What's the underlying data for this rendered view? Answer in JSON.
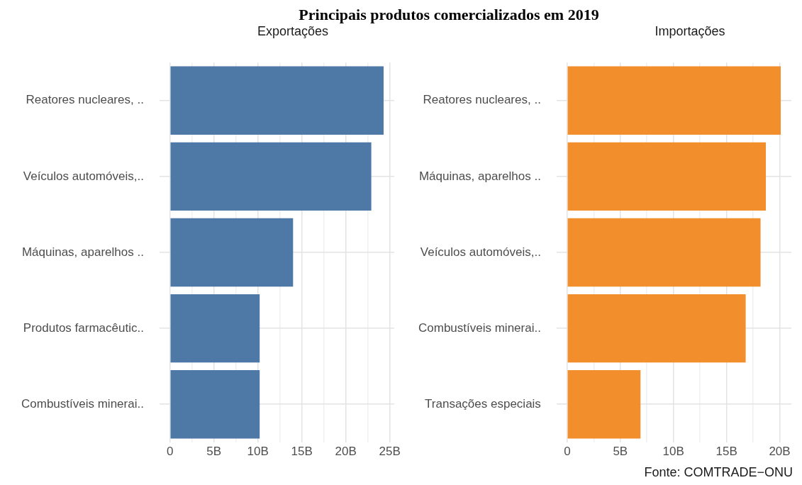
{
  "chart_data": [
    {
      "type": "bar",
      "orientation": "horizontal",
      "title": "Principais produtos comercializados em 2019",
      "subtitle": "Exportações",
      "categories": [
        "Reatores nucleares, ..",
        "Veículos automóveis,..",
        "Máquinas, aparelhos ..",
        "Produtos farmacêutic..",
        "Combustíveis minerai.."
      ],
      "values": [
        24.3,
        22.9,
        14.0,
        10.2,
        10.2
      ],
      "color": "#4e79a7",
      "xlim": [
        -1.2,
        25.5
      ],
      "xticks": [
        {
          "value": 0,
          "label": "0"
        },
        {
          "value": 2.5,
          "label": null
        },
        {
          "value": 5,
          "label": "5B"
        },
        {
          "value": 7.5,
          "label": null
        },
        {
          "value": 10,
          "label": "10B"
        },
        {
          "value": 12.5,
          "label": null
        },
        {
          "value": 15,
          "label": "15B"
        },
        {
          "value": 17.5,
          "label": null
        },
        {
          "value": 20,
          "label": "20B"
        },
        {
          "value": 22.5,
          "label": null
        },
        {
          "value": 25,
          "label": "25B"
        }
      ],
      "grid": true,
      "legend": false
    },
    {
      "type": "bar",
      "orientation": "horizontal",
      "subtitle": "Importações",
      "categories": [
        "Reatores nucleares, ..",
        "Máquinas, aparelhos ..",
        "Veículos automóveis,..",
        "Combustíveis minerai..",
        "Transações especiais"
      ],
      "values": [
        20.1,
        18.7,
        18.2,
        16.8,
        6.9
      ],
      "color": "#f28e2b",
      "xlim": [
        -1.0,
        21.1
      ],
      "xticks": [
        {
          "value": 0,
          "label": "0"
        },
        {
          "value": 2.5,
          "label": null
        },
        {
          "value": 5,
          "label": "5B"
        },
        {
          "value": 7.5,
          "label": null
        },
        {
          "value": 10,
          "label": "10B"
        },
        {
          "value": 12.5,
          "label": null
        },
        {
          "value": 15,
          "label": "15B"
        },
        {
          "value": 17.5,
          "label": null
        },
        {
          "value": 20,
          "label": "20B"
        }
      ],
      "grid": true,
      "legend": false,
      "annotations": [
        "Fonte: COMTRADE−ONU"
      ]
    }
  ]
}
